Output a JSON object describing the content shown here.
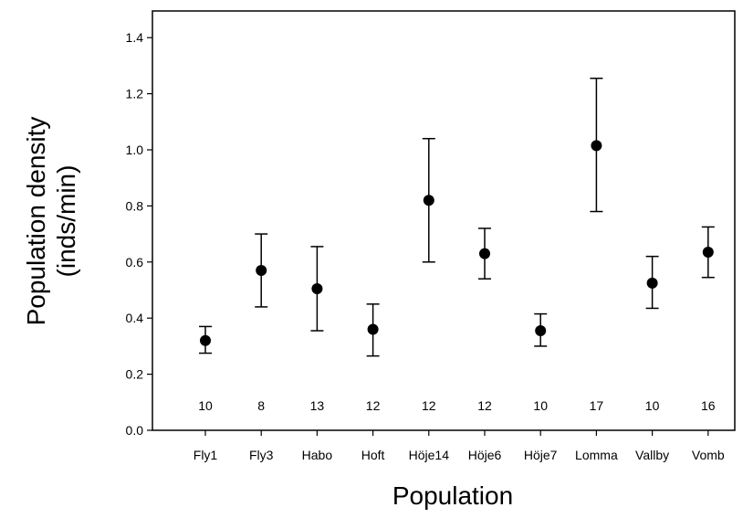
{
  "chart_data": {
    "type": "scatter",
    "categories": [
      "Fly1",
      "Fly3",
      "Habo",
      "Hoft",
      "Höje14",
      "Höje6",
      "Höje7",
      "Lomma",
      "Vallby",
      "Vomb"
    ],
    "series": [
      {
        "values": [
          0.32,
          0.57,
          0.505,
          0.36,
          0.82,
          0.63,
          0.355,
          1.015,
          0.525,
          0.635
        ],
        "error_low": [
          0.275,
          0.44,
          0.355,
          0.265,
          0.6,
          0.54,
          0.3,
          0.78,
          0.435,
          0.545
        ],
        "error_high": [
          0.37,
          0.7,
          0.655,
          0.45,
          1.04,
          0.72,
          0.415,
          1.255,
          0.62,
          0.725
        ]
      }
    ],
    "sample_sizes": [
      "10",
      "8",
      "13",
      "12",
      "12",
      "12",
      "10",
      "17",
      "10",
      "16"
    ],
    "xlabel": "Population",
    "ylabel_line1": "Population density",
    "ylabel_line2": "(inds/min)",
    "ylim": [
      0.0,
      1.5
    ],
    "yticks": [
      "0.0",
      "0.2",
      "0.4",
      "0.6",
      "0.8",
      "1.0",
      "1.2",
      "1.4"
    ],
    "grid": false,
    "marker_color": "#000000"
  }
}
